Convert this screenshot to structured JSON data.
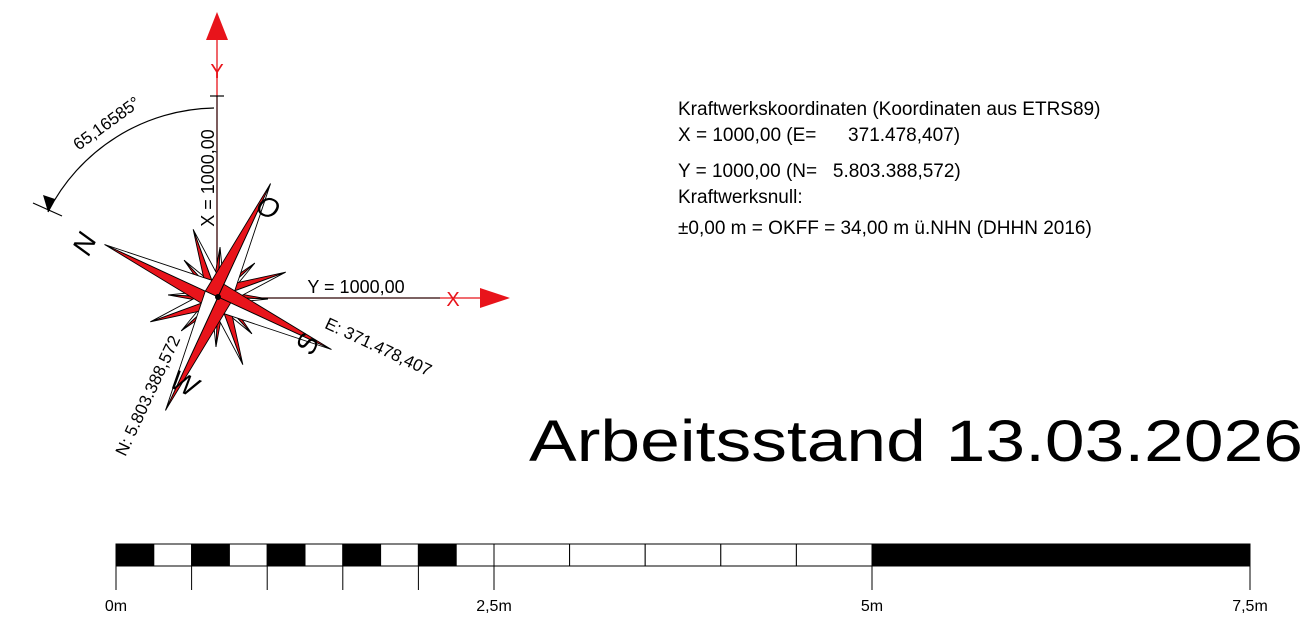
{
  "compass": {
    "y_axis_label": "Y",
    "x_axis_label": "X",
    "rotation_angle": "65,16585°",
    "x_dimension": "X = 1000,00",
    "y_dimension": "Y = 1000,00",
    "easting": "E: 371.478,407",
    "northing": "N: 5.803.388,572",
    "direction_n": "N",
    "direction_o": "O",
    "direction_s": "S",
    "direction_w": "W",
    "accent_color": "#e8141b"
  },
  "info": {
    "line1": "Kraftwerkskoordinaten (Koordinaten aus ETRS89)",
    "line2": "X = 1000,00 (E=      371.478,407)",
    "line3": "Y = 1000,00 (N=   5.803.388,572)",
    "line4": "Kraftwerksnull:",
    "line5": "±0,00 m = OKFF = 34,00 m ü.NHN (DHHN 2016)"
  },
  "status_text": "Arbeitsstand 13.03.2026",
  "scale_bar": {
    "unit": "m",
    "labels": [
      "0m",
      "2,5m",
      "5m",
      "7,5m"
    ],
    "label_values": [
      0,
      2.5,
      5,
      7.5
    ]
  }
}
